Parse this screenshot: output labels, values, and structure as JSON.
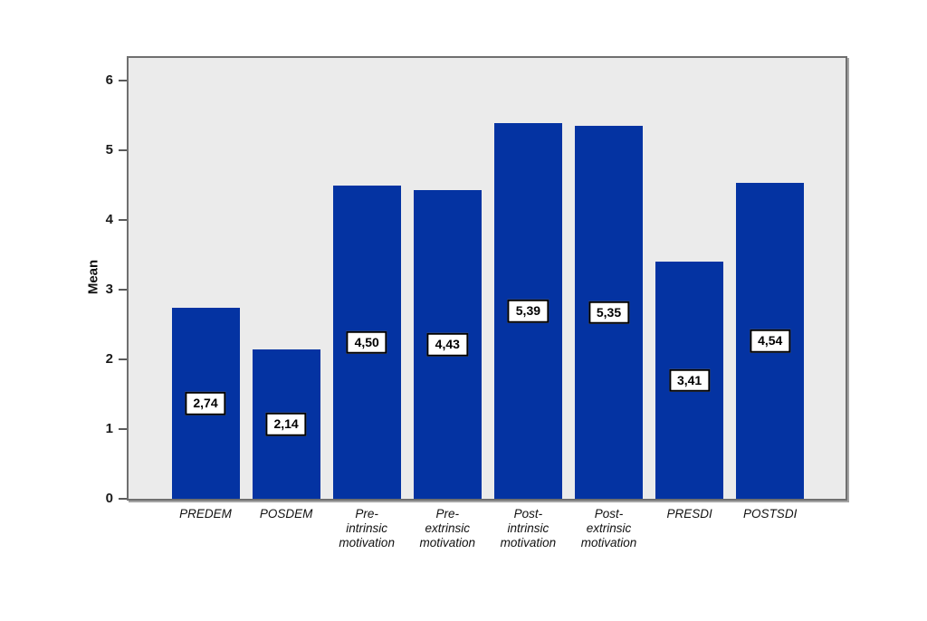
{
  "figure": {
    "background": "#ffffff",
    "plot_background": "#ebebeb",
    "frame_border_color": "#6f6f6f",
    "bar_color": "#0433a2",
    "value_box_bg": "#ffffff",
    "value_box_border": "#000000"
  },
  "chart_data": {
    "type": "bar",
    "title": "",
    "xlabel": "",
    "ylabel": "Mean",
    "categories": [
      "PREDEM",
      "POSDEM",
      "Pre-\nintrinsic\nmotivation",
      "Pre-\nextrinsic\nmotivation",
      "Post-\nintrinsic\nmotivation",
      "Post-\nextrinsic\nmotivation",
      "PRESDI",
      "POSTSDI"
    ],
    "values": [
      2.74,
      2.14,
      4.5,
      4.43,
      5.39,
      5.35,
      3.41,
      4.54
    ],
    "value_labels": [
      "2,74",
      "2,14",
      "4,50",
      "4,43",
      "5,39",
      "5,35",
      "3,41",
      "4,54"
    ],
    "yticks": [
      0,
      1,
      2,
      3,
      4,
      5,
      6
    ],
    "ytick_labels": [
      "0",
      "1",
      "2",
      "3",
      "4",
      "5",
      "6"
    ],
    "ylim": [
      0,
      6.33
    ],
    "grid": false,
    "legend": "none"
  }
}
